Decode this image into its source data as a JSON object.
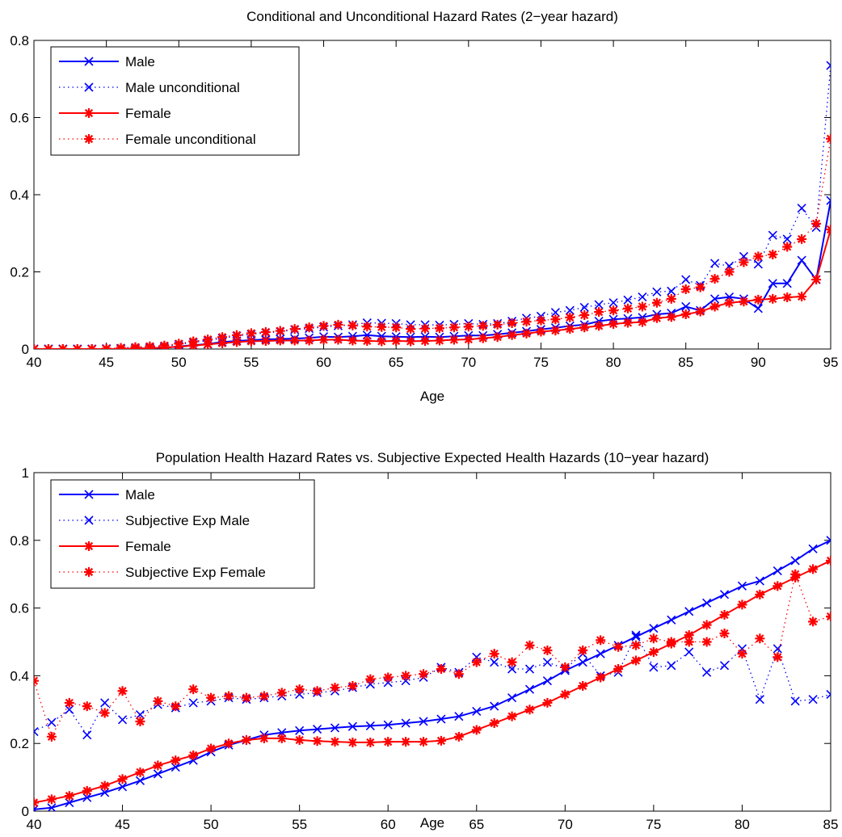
{
  "chart_data": [
    {
      "type": "line",
      "title": "Conditional and Unconditional Hazard Rates (2−year hazard)",
      "xlabel": "Age",
      "ylabel": "",
      "xlim": [
        40,
        95
      ],
      "ylim": [
        0,
        0.8
      ],
      "xticks": [
        40,
        45,
        50,
        55,
        60,
        65,
        70,
        75,
        80,
        85,
        90,
        95
      ],
      "yticks": [
        0,
        0.2,
        0.4,
        0.6,
        0.8
      ],
      "ytick_labels": [
        "0",
        "0.2",
        "0.4",
        "0.6",
        "0.8"
      ],
      "grid": false,
      "legend_position": "top-left",
      "x": [
        40,
        41,
        42,
        43,
        44,
        45,
        46,
        47,
        48,
        49,
        50,
        51,
        52,
        53,
        54,
        55,
        56,
        57,
        58,
        59,
        60,
        61,
        62,
        63,
        64,
        65,
        66,
        67,
        68,
        69,
        70,
        71,
        72,
        73,
        74,
        75,
        76,
        77,
        78,
        79,
        80,
        81,
        82,
        83,
        84,
        85,
        86,
        87,
        88,
        89,
        90,
        91,
        92,
        93,
        94,
        95
      ],
      "series": [
        {
          "name": "Male",
          "color": "#0000ff",
          "line": "solid",
          "marker": "x",
          "values": [
            0,
            0,
            0,
            0,
            0,
            0,
            0,
            0.001,
            0.002,
            0.003,
            0.007,
            0.01,
            0.013,
            0.018,
            0.021,
            0.023,
            0.025,
            0.026,
            0.027,
            0.029,
            0.032,
            0.031,
            0.033,
            0.036,
            0.033,
            0.032,
            0.031,
            0.032,
            0.031,
            0.033,
            0.035,
            0.035,
            0.038,
            0.042,
            0.046,
            0.051,
            0.055,
            0.06,
            0.063,
            0.072,
            0.077,
            0.079,
            0.082,
            0.09,
            0.093,
            0.11,
            0.1,
            0.13,
            0.135,
            0.13,
            0.105,
            0.17,
            0.17,
            0.23,
            0.18,
            0.385
          ]
        },
        {
          "name": "Male unconditional",
          "color": "#0000ff",
          "line": "dotted",
          "marker": "x",
          "values": [
            0,
            0,
            0,
            0,
            0,
            0.001,
            0.002,
            0.003,
            0.005,
            0.007,
            0.012,
            0.017,
            0.022,
            0.028,
            0.034,
            0.038,
            0.042,
            0.045,
            0.05,
            0.053,
            0.057,
            0.06,
            0.063,
            0.068,
            0.067,
            0.066,
            0.063,
            0.063,
            0.062,
            0.064,
            0.066,
            0.064,
            0.066,
            0.072,
            0.08,
            0.085,
            0.095,
            0.1,
            0.108,
            0.115,
            0.12,
            0.127,
            0.135,
            0.148,
            0.15,
            0.18,
            0.165,
            0.222,
            0.215,
            0.24,
            0.22,
            0.295,
            0.285,
            0.365,
            0.315,
            0.735
          ]
        },
        {
          "name": "Female",
          "color": "#ff0000",
          "line": "solid",
          "marker": "*",
          "values": [
            0,
            0,
            0,
            0,
            0,
            0,
            0,
            0.001,
            0.002,
            0.004,
            0.006,
            0.009,
            0.012,
            0.015,
            0.018,
            0.02,
            0.021,
            0.022,
            0.022,
            0.022,
            0.024,
            0.024,
            0.022,
            0.021,
            0.02,
            0.021,
            0.02,
            0.021,
            0.022,
            0.024,
            0.025,
            0.028,
            0.031,
            0.036,
            0.04,
            0.045,
            0.048,
            0.052,
            0.056,
            0.06,
            0.065,
            0.068,
            0.07,
            0.08,
            0.083,
            0.09,
            0.097,
            0.11,
            0.12,
            0.123,
            0.128,
            0.13,
            0.134,
            0.136,
            0.18,
            0.31
          ]
        },
        {
          "name": "Female unconditional",
          "color": "#ff0000",
          "line": "dotted",
          "marker": "*",
          "values": [
            0,
            0,
            0,
            0,
            0,
            0.001,
            0.003,
            0.005,
            0.007,
            0.009,
            0.014,
            0.02,
            0.025,
            0.031,
            0.036,
            0.041,
            0.044,
            0.047,
            0.052,
            0.056,
            0.06,
            0.063,
            0.061,
            0.058,
            0.057,
            0.056,
            0.052,
            0.053,
            0.054,
            0.056,
            0.058,
            0.06,
            0.063,
            0.067,
            0.071,
            0.074,
            0.077,
            0.082,
            0.088,
            0.096,
            0.1,
            0.105,
            0.11,
            0.12,
            0.13,
            0.155,
            0.16,
            0.182,
            0.2,
            0.225,
            0.24,
            0.245,
            0.265,
            0.285,
            0.325,
            0.545
          ]
        }
      ]
    },
    {
      "type": "line",
      "title": "Population Health Hazard Rates vs. Subjective Expected Health Hazards (10−year hazard)",
      "xlabel": "Age",
      "ylabel": "",
      "xlim": [
        40,
        85
      ],
      "ylim": [
        0,
        1
      ],
      "xticks": [
        40,
        45,
        50,
        55,
        60,
        65,
        70,
        75,
        80,
        85
      ],
      "yticks": [
        0,
        0.2,
        0.4,
        0.6,
        0.8,
        1
      ],
      "ytick_labels": [
        "0",
        "0.2",
        "0.4",
        "0.6",
        "0.8",
        "1"
      ],
      "grid": false,
      "legend_position": "top-left",
      "x": [
        40,
        41,
        42,
        43,
        44,
        45,
        46,
        47,
        48,
        49,
        50,
        51,
        52,
        53,
        54,
        55,
        56,
        57,
        58,
        59,
        60,
        61,
        62,
        63,
        64,
        65,
        66,
        67,
        68,
        69,
        70,
        71,
        72,
        73,
        74,
        75,
        76,
        77,
        78,
        79,
        80,
        81,
        82,
        83,
        84,
        85
      ],
      "series": [
        {
          "name": "Male",
          "color": "#0000ff",
          "line": "solid",
          "marker": "x",
          "values": [
            0.005,
            0.01,
            0.025,
            0.04,
            0.055,
            0.072,
            0.09,
            0.11,
            0.13,
            0.15,
            0.175,
            0.195,
            0.21,
            0.225,
            0.232,
            0.238,
            0.242,
            0.246,
            0.25,
            0.252,
            0.255,
            0.26,
            0.265,
            0.272,
            0.28,
            0.295,
            0.31,
            0.335,
            0.36,
            0.385,
            0.415,
            0.44,
            0.465,
            0.49,
            0.515,
            0.54,
            0.565,
            0.59,
            0.615,
            0.64,
            0.665,
            0.68,
            0.71,
            0.74,
            0.775,
            0.8
          ]
        },
        {
          "name": "Subjective Exp Male",
          "color": "#0000ff",
          "line": "dotted",
          "marker": "x",
          "values": [
            0.235,
            0.262,
            0.3,
            0.225,
            0.32,
            0.27,
            0.285,
            0.315,
            0.305,
            0.32,
            0.325,
            0.335,
            0.33,
            0.335,
            0.34,
            0.345,
            0.35,
            0.355,
            0.365,
            0.375,
            0.38,
            0.385,
            0.395,
            0.425,
            0.41,
            0.455,
            0.44,
            0.42,
            0.42,
            0.44,
            0.42,
            0.465,
            0.4,
            0.41,
            0.52,
            0.425,
            0.43,
            0.47,
            0.41,
            0.43,
            0.48,
            0.33,
            0.48,
            0.325,
            0.33,
            0.345
          ]
        },
        {
          "name": "Female",
          "color": "#ff0000",
          "line": "solid",
          "marker": "*",
          "values": [
            0.025,
            0.035,
            0.045,
            0.06,
            0.075,
            0.095,
            0.115,
            0.135,
            0.15,
            0.165,
            0.185,
            0.2,
            0.21,
            0.215,
            0.215,
            0.21,
            0.207,
            0.205,
            0.203,
            0.203,
            0.205,
            0.205,
            0.205,
            0.208,
            0.22,
            0.24,
            0.26,
            0.28,
            0.3,
            0.32,
            0.345,
            0.37,
            0.395,
            0.42,
            0.445,
            0.47,
            0.495,
            0.52,
            0.55,
            0.58,
            0.61,
            0.64,
            0.665,
            0.69,
            0.715,
            0.74
          ]
        },
        {
          "name": "Subjective Exp Female",
          "color": "#ff0000",
          "line": "dotted",
          "marker": "*",
          "values": [
            0.385,
            0.22,
            0.32,
            0.31,
            0.29,
            0.355,
            0.265,
            0.325,
            0.31,
            0.36,
            0.335,
            0.34,
            0.335,
            0.34,
            0.35,
            0.36,
            0.355,
            0.365,
            0.37,
            0.39,
            0.395,
            0.4,
            0.405,
            0.42,
            0.405,
            0.44,
            0.465,
            0.44,
            0.49,
            0.475,
            0.425,
            0.475,
            0.505,
            0.485,
            0.49,
            0.51,
            0.5,
            0.5,
            0.5,
            0.525,
            0.465,
            0.51,
            0.455,
            0.7,
            0.56,
            0.575
          ]
        }
      ]
    }
  ]
}
